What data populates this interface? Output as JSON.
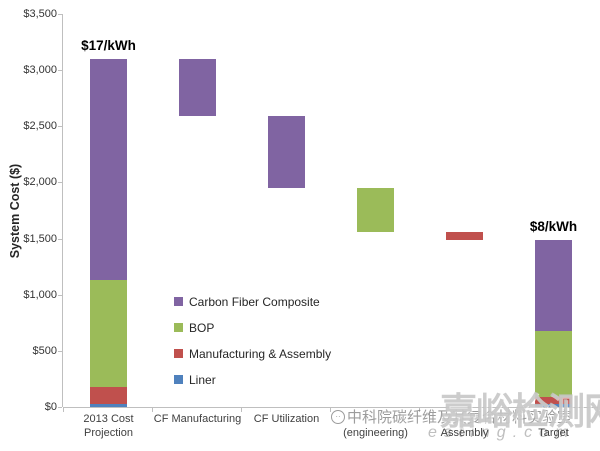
{
  "chart_data": {
    "type": "bar",
    "subtype": "stacked-waterfall",
    "title": "",
    "xlabel": "",
    "ylabel": "System Cost ($)",
    "ylim": [
      0,
      3500
    ],
    "grid": false,
    "legend_position": "inside-middle-left",
    "y_ticks": [
      {
        "label": "$0",
        "value": 0
      },
      {
        "label": "$500",
        "value": 500
      },
      {
        "label": "$1,000",
        "value": 1000
      },
      {
        "label": "$1,500",
        "value": 1500
      },
      {
        "label": "$2,000",
        "value": 2000
      },
      {
        "label": "$2,500",
        "value": 2500
      },
      {
        "label": "$3,000",
        "value": 3000
      },
      {
        "label": "$3,500",
        "value": 3500
      }
    ],
    "legend": [
      {
        "label": "Carbon Fiber Composite",
        "color": "#8064A2"
      },
      {
        "label": "BOP",
        "color": "#9BBB59"
      },
      {
        "label": "Manufacturing & Assembly",
        "color": "#C0504D"
      },
      {
        "label": "Liner",
        "color": "#4F81BD"
      }
    ],
    "bars": [
      {
        "category_lines": [
          "2013 Cost",
          "Projection"
        ],
        "annotation": "$17/kWh",
        "segments": [
          {
            "name": "Liner",
            "from": 0,
            "to": 30
          },
          {
            "name": "Manufacturing & Assembly",
            "from": 30,
            "to": 180
          },
          {
            "name": "BOP",
            "from": 180,
            "to": 1130
          },
          {
            "name": "Carbon Fiber Composite",
            "from": 1130,
            "to": 3100
          }
        ]
      },
      {
        "category_lines": [
          "CF Manufacturing"
        ],
        "annotation": "",
        "segments": [
          {
            "name": "Carbon Fiber Composite",
            "from": 2590,
            "to": 3100
          }
        ]
      },
      {
        "category_lines": [
          "CF Utilization"
        ],
        "annotation": "",
        "segments": [
          {
            "name": "Carbon Fiber Composite",
            "from": 1950,
            "to": 2590
          }
        ]
      },
      {
        "category_lines": [
          "",
          "(engineering)"
        ],
        "annotation": "",
        "segments": [
          {
            "name": "BOP",
            "from": 1560,
            "to": 1950
          }
        ]
      },
      {
        "category_lines": [
          "",
          "Assembly"
        ],
        "annotation": "",
        "segments": [
          {
            "name": "Manufacturing & Assembly",
            "from": 1490,
            "to": 1560
          }
        ]
      },
      {
        "category_lines": [
          "",
          "Target"
        ],
        "annotation": "$8/kWh",
        "segments": [
          {
            "name": "Liner",
            "from": 0,
            "to": 30
          },
          {
            "name": "Manufacturing & Assembly",
            "from": 30,
            "to": 90
          },
          {
            "name": "BOP",
            "from": 90,
            "to": 680
          },
          {
            "name": "Carbon Fiber Composite",
            "from": 680,
            "to": 1490
          }
        ]
      }
    ],
    "annotations": [
      {
        "text": "$17/kWh",
        "bar_index": 0
      },
      {
        "text": "$8/kWh",
        "bar_index": 5
      }
    ]
  },
  "axis_colors": {
    "line": "#bfbfbf",
    "tick_text": "#333333"
  },
  "watermarks": {
    "site_name": "嘉峪检测网",
    "url_fragment": "esting.com",
    "lab_text": "中科院碳纤维及其复合材料实验室"
  }
}
